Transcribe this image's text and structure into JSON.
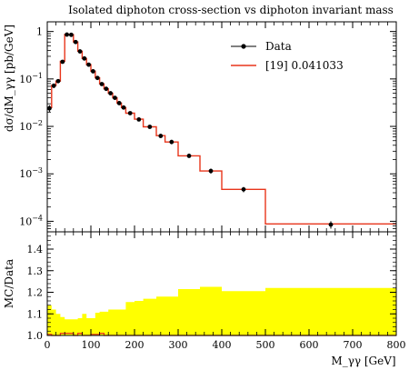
{
  "chart_data": [
    {
      "type": "line",
      "panel": "main",
      "title": "Isolated diphoton cross-section vs diphoton invariant mass",
      "xlabel": "M_γγ [GeV]",
      "ylabel": "dσ/dM_γγ [pb/GeV]",
      "xlim": [
        0,
        800
      ],
      "ylim": [
        6e-05,
        1.6
      ],
      "yscale": "log",
      "x_ticks": [
        0,
        100,
        200,
        300,
        400,
        500,
        600,
        700,
        800
      ],
      "y_ticks": [
        {
          "value": 0.0001,
          "base": "10",
          "exp": "−4"
        },
        {
          "value": 0.001,
          "base": "10",
          "exp": "−3"
        },
        {
          "value": 0.01,
          "base": "10",
          "exp": "−2"
        },
        {
          "value": 0.1,
          "base": "10",
          "exp": "−1"
        },
        {
          "value": 1,
          "base": "1",
          "exp": ""
        }
      ],
      "legend_position": "top-right",
      "series": [
        {
          "name": "Data",
          "style": "markers",
          "color": "#000000",
          "points": [
            {
              "x": 5,
              "y": 0.024,
              "err": 0.004
            },
            {
              "x": 15,
              "y": 0.072,
              "err": 0.008
            },
            {
              "x": 25,
              "y": 0.09,
              "err": 0.009
            },
            {
              "x": 35,
              "y": 0.23,
              "err": 0.02
            },
            {
              "x": 45,
              "y": 0.86,
              "err": 0.05
            },
            {
              "x": 55,
              "y": 0.85,
              "err": 0.05
            },
            {
              "x": 65,
              "y": 0.6,
              "err": 0.04
            },
            {
              "x": 75,
              "y": 0.38,
              "err": 0.025
            },
            {
              "x": 85,
              "y": 0.27,
              "err": 0.02
            },
            {
              "x": 95,
              "y": 0.2,
              "err": 0.015
            },
            {
              "x": 105,
              "y": 0.145,
              "err": 0.01
            },
            {
              "x": 115,
              "y": 0.105,
              "err": 0.008
            },
            {
              "x": 125,
              "y": 0.078,
              "err": 0.006
            },
            {
              "x": 135,
              "y": 0.062,
              "err": 0.005
            },
            {
              "x": 145,
              "y": 0.05,
              "err": 0.004
            },
            {
              "x": 155,
              "y": 0.04,
              "err": 0.003
            },
            {
              "x": 165,
              "y": 0.031,
              "err": 0.003
            },
            {
              "x": 175,
              "y": 0.025,
              "err": 0.002
            },
            {
              "x": 190,
              "y": 0.019,
              "err": 0.0016
            },
            {
              "x": 210,
              "y": 0.014,
              "err": 0.0012
            },
            {
              "x": 235,
              "y": 0.0098,
              "err": 0.0009
            },
            {
              "x": 260,
              "y": 0.0063,
              "err": 0.0006
            },
            {
              "x": 285,
              "y": 0.0047,
              "err": 0.0005
            },
            {
              "x": 325,
              "y": 0.0024,
              "err": 0.00025
            },
            {
              "x": 375,
              "y": 0.00115,
              "err": 0.00014
            },
            {
              "x": 450,
              "y": 0.00047,
              "err": 6e-05
            },
            {
              "x": 650,
              "y": 8.5e-05,
              "err": 1.5e-05
            }
          ]
        },
        {
          "name": "[19] 0.041033",
          "style": "histogram",
          "color": "#e8351b",
          "bins": [
            {
              "lo": 0,
              "hi": 10,
              "y": 0.025
            },
            {
              "lo": 10,
              "hi": 20,
              "y": 0.073
            },
            {
              "lo": 20,
              "hi": 30,
              "y": 0.09
            },
            {
              "lo": 30,
              "hi": 40,
              "y": 0.235
            },
            {
              "lo": 40,
              "hi": 50,
              "y": 0.87
            },
            {
              "lo": 50,
              "hi": 60,
              "y": 0.86
            },
            {
              "lo": 60,
              "hi": 70,
              "y": 0.6
            },
            {
              "lo": 70,
              "hi": 80,
              "y": 0.385
            },
            {
              "lo": 80,
              "hi": 90,
              "y": 0.27
            },
            {
              "lo": 90,
              "hi": 100,
              "y": 0.2
            },
            {
              "lo": 100,
              "hi": 110,
              "y": 0.146
            },
            {
              "lo": 110,
              "hi": 120,
              "y": 0.106
            },
            {
              "lo": 120,
              "hi": 130,
              "y": 0.079
            },
            {
              "lo": 130,
              "hi": 140,
              "y": 0.062
            },
            {
              "lo": 140,
              "hi": 150,
              "y": 0.05
            },
            {
              "lo": 150,
              "hi": 160,
              "y": 0.04
            },
            {
              "lo": 160,
              "hi": 170,
              "y": 0.031
            },
            {
              "lo": 170,
              "hi": 180,
              "y": 0.025
            },
            {
              "lo": 180,
              "hi": 200,
              "y": 0.019
            },
            {
              "lo": 200,
              "hi": 220,
              "y": 0.0142
            },
            {
              "lo": 220,
              "hi": 250,
              "y": 0.0098
            },
            {
              "lo": 250,
              "hi": 270,
              "y": 0.0064
            },
            {
              "lo": 270,
              "hi": 300,
              "y": 0.0047
            },
            {
              "lo": 300,
              "hi": 350,
              "y": 0.0024
            },
            {
              "lo": 350,
              "hi": 400,
              "y": 0.00115
            },
            {
              "lo": 400,
              "hi": 500,
              "y": 0.00047
            },
            {
              "lo": 500,
              "hi": 800,
              "y": 8.8e-05
            }
          ]
        }
      ]
    },
    {
      "type": "area",
      "panel": "ratio",
      "xlabel": "M_γγ [GeV]",
      "ylabel": "MC/Data",
      "xlim": [
        0,
        800
      ],
      "ylim": [
        1.0,
        1.48
      ],
      "x_ticks": [
        0,
        100,
        200,
        300,
        400,
        500,
        600,
        700,
        800
      ],
      "y_ticks": [
        1.0,
        1.1,
        1.2,
        1.3,
        1.4
      ],
      "band_color": "#ffff00",
      "band": [
        {
          "lo": 0,
          "hi": 10,
          "up": 1.14,
          "down": 1.0
        },
        {
          "lo": 10,
          "hi": 20,
          "up": 1.12,
          "down": 1.0
        },
        {
          "lo": 20,
          "hi": 30,
          "up": 1.1,
          "down": 1.0
        },
        {
          "lo": 30,
          "hi": 40,
          "up": 1.085,
          "down": 1.0
        },
        {
          "lo": 40,
          "hi": 50,
          "up": 1.075,
          "down": 1.0
        },
        {
          "lo": 50,
          "hi": 60,
          "up": 1.075,
          "down": 1.0
        },
        {
          "lo": 60,
          "hi": 70,
          "up": 1.075,
          "down": 1.0
        },
        {
          "lo": 70,
          "hi": 80,
          "up": 1.08,
          "down": 1.0
        },
        {
          "lo": 80,
          "hi": 90,
          "up": 1.1,
          "down": 1.0
        },
        {
          "lo": 90,
          "hi": 100,
          "up": 1.08,
          "down": 1.0
        },
        {
          "lo": 100,
          "hi": 110,
          "up": 1.08,
          "down": 1.0
        },
        {
          "lo": 110,
          "hi": 120,
          "up": 1.105,
          "down": 1.0
        },
        {
          "lo": 120,
          "hi": 130,
          "up": 1.11,
          "down": 1.0
        },
        {
          "lo": 130,
          "hi": 140,
          "up": 1.11,
          "down": 1.0
        },
        {
          "lo": 140,
          "hi": 150,
          "up": 1.12,
          "down": 1.0
        },
        {
          "lo": 150,
          "hi": 160,
          "up": 1.12,
          "down": 1.0
        },
        {
          "lo": 160,
          "hi": 170,
          "up": 1.12,
          "down": 1.0
        },
        {
          "lo": 170,
          "hi": 180,
          "up": 1.12,
          "down": 1.0
        },
        {
          "lo": 180,
          "hi": 200,
          "up": 1.155,
          "down": 1.0
        },
        {
          "lo": 200,
          "hi": 220,
          "up": 1.16,
          "down": 1.0
        },
        {
          "lo": 220,
          "hi": 250,
          "up": 1.17,
          "down": 1.0
        },
        {
          "lo": 250,
          "hi": 270,
          "up": 1.18,
          "down": 1.0
        },
        {
          "lo": 270,
          "hi": 300,
          "up": 1.18,
          "down": 1.0
        },
        {
          "lo": 300,
          "hi": 350,
          "up": 1.215,
          "down": 1.0
        },
        {
          "lo": 350,
          "hi": 400,
          "up": 1.225,
          "down": 1.0
        },
        {
          "lo": 400,
          "hi": 500,
          "up": 1.205,
          "down": 1.0
        },
        {
          "lo": 500,
          "hi": 800,
          "up": 1.22,
          "down": 1.0
        }
      ],
      "ratio_line": [
        {
          "lo": 0,
          "hi": 10,
          "y": 1.005
        },
        {
          "lo": 10,
          "hi": 20,
          "y": 1.0
        },
        {
          "lo": 20,
          "hi": 30,
          "y": 1.0
        },
        {
          "lo": 30,
          "hi": 40,
          "y": 1.01
        },
        {
          "lo": 40,
          "hi": 50,
          "y": 1.01
        },
        {
          "lo": 50,
          "hi": 60,
          "y": 1.01
        },
        {
          "lo": 60,
          "hi": 70,
          "y": 1.0
        },
        {
          "lo": 70,
          "hi": 80,
          "y": 1.01
        },
        {
          "lo": 80,
          "hi": 90,
          "y": 1.0
        },
        {
          "lo": 90,
          "hi": 100,
          "y": 1.0
        },
        {
          "lo": 100,
          "hi": 110,
          "y": 1.005
        },
        {
          "lo": 110,
          "hi": 120,
          "y": 1.005
        },
        {
          "lo": 120,
          "hi": 130,
          "y": 1.01
        },
        {
          "lo": 130,
          "hi": 140,
          "y": 1.0
        },
        {
          "lo": 140,
          "hi": 150,
          "y": 1.0
        },
        {
          "lo": 150,
          "hi": 160,
          "y": 1.0
        },
        {
          "lo": 160,
          "hi": 170,
          "y": 1.0
        },
        {
          "lo": 170,
          "hi": 180,
          "y": 1.0
        },
        {
          "lo": 180,
          "hi": 200,
          "y": 1.0
        },
        {
          "lo": 200,
          "hi": 220,
          "y": 1.0
        },
        {
          "lo": 220,
          "hi": 250,
          "y": 1.0
        },
        {
          "lo": 250,
          "hi": 270,
          "y": 1.0
        },
        {
          "lo": 270,
          "hi": 300,
          "y": 1.0
        },
        {
          "lo": 300,
          "hi": 350,
          "y": 1.0
        },
        {
          "lo": 350,
          "hi": 400,
          "y": 1.0
        },
        {
          "lo": 400,
          "hi": 500,
          "y": 1.0
        },
        {
          "lo": 500,
          "hi": 800,
          "y": 1.0
        }
      ]
    }
  ]
}
